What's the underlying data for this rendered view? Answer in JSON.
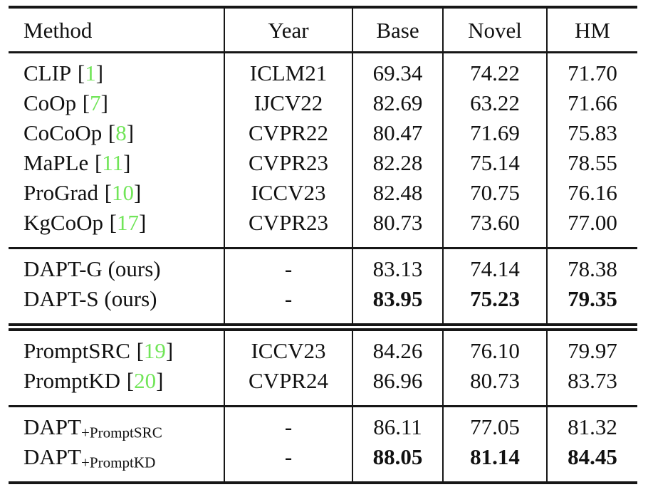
{
  "style": {
    "citation_color": "#71e558",
    "rule_color": "#161616",
    "text_color": "#111111"
  },
  "punct": {
    "open_bracket": "[",
    "close_bracket": "]"
  },
  "table": {
    "columns": {
      "method": "Method",
      "year": "Year",
      "base": "Base",
      "novel": "Novel",
      "hm": "HM"
    },
    "sections": [
      {
        "rows": [
          {
            "method": "CLIP",
            "ref": "1",
            "year": "ICLM21",
            "base": "69.34",
            "novel": "74.22",
            "hm": "71.70"
          },
          {
            "method": "CoOp",
            "ref": "7",
            "year": "IJCV22",
            "base": "82.69",
            "novel": "63.22",
            "hm": "71.66"
          },
          {
            "method": "CoCoOp",
            "ref": "8",
            "year": "CVPR22",
            "base": "80.47",
            "novel": "71.69",
            "hm": "75.83"
          },
          {
            "method": "MaPLe",
            "ref": "11",
            "year": "CVPR23",
            "base": "82.28",
            "novel": "75.14",
            "hm": "78.55"
          },
          {
            "method": "ProGrad",
            "ref": "10",
            "year": "ICCV23",
            "base": "82.48",
            "novel": "70.75",
            "hm": "76.16"
          },
          {
            "method": "KgCoOp",
            "ref": "17",
            "year": "CVPR23",
            "base": "80.73",
            "novel": "73.60",
            "hm": "77.00"
          }
        ]
      },
      {
        "rows": [
          {
            "method": "DAPT-G (ours)",
            "year": "-",
            "base": "83.13",
            "novel": "74.14",
            "hm": "78.38"
          },
          {
            "method": "DAPT-S (ours)",
            "year": "-",
            "base": "83.95",
            "novel": "75.23",
            "hm": "79.35",
            "bold": true
          }
        ]
      },
      {
        "rows": [
          {
            "method": "PromptSRC",
            "ref": "19",
            "year": "ICCV23",
            "base": "84.26",
            "novel": "76.10",
            "hm": "79.97"
          },
          {
            "method": "PromptKD",
            "ref": "20",
            "year": "CVPR24",
            "base": "86.96",
            "novel": "80.73",
            "hm": "83.73"
          }
        ]
      },
      {
        "rows": [
          {
            "method": "DAPT",
            "subscript": "+PromptSRC",
            "year": "-",
            "base": "86.11",
            "novel": "77.05",
            "hm": "81.32"
          },
          {
            "method": "DAPT",
            "subscript": "+PromptKD",
            "year": "-",
            "base": "88.05",
            "novel": "81.14",
            "hm": "84.45",
            "bold": true
          }
        ]
      }
    ]
  }
}
